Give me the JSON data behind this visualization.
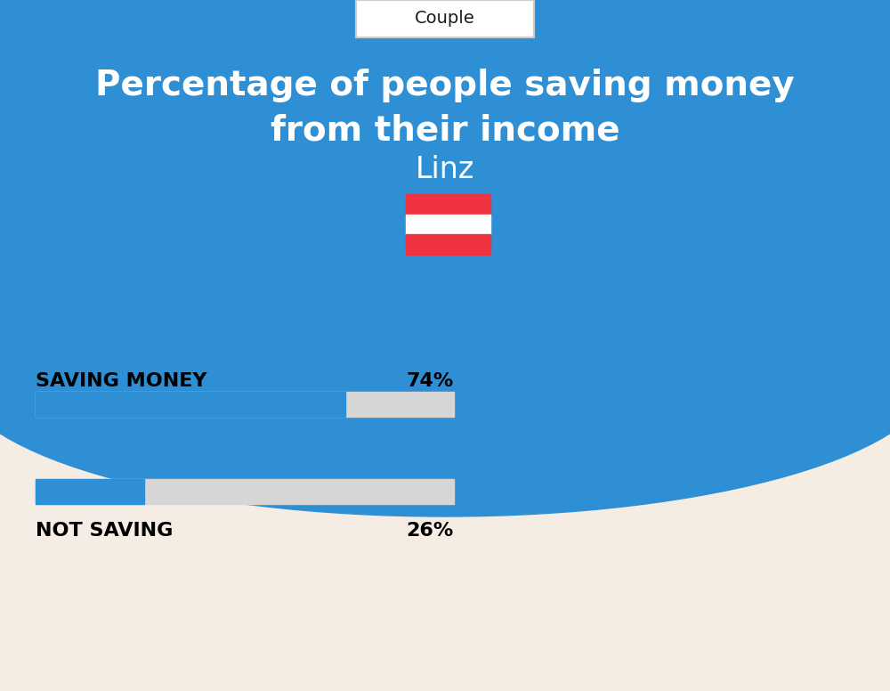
{
  "title_line1": "Percentage of people saving money",
  "title_line2": "from their income",
  "city": "Linz",
  "tab_label": "Couple",
  "background_top": "#2e8fd4",
  "background_bottom": "#f5ece3",
  "bar_color": "#2e8fd4",
  "bar_bg_color": "#d6d6d6",
  "saving_label": "SAVING MONEY",
  "saving_value": 74,
  "saving_pct_text": "74%",
  "not_saving_label": "NOT SAVING",
  "not_saving_value": 26,
  "not_saving_pct_text": "26%",
  "label_color": "#000000",
  "title_color": "#ffffff",
  "city_color": "#ffffff",
  "tab_text_color": "#1a1a1a",
  "tab_bg_color": "#ffffff",
  "flag_red": "#EF3340",
  "flag_white": "#ffffff"
}
